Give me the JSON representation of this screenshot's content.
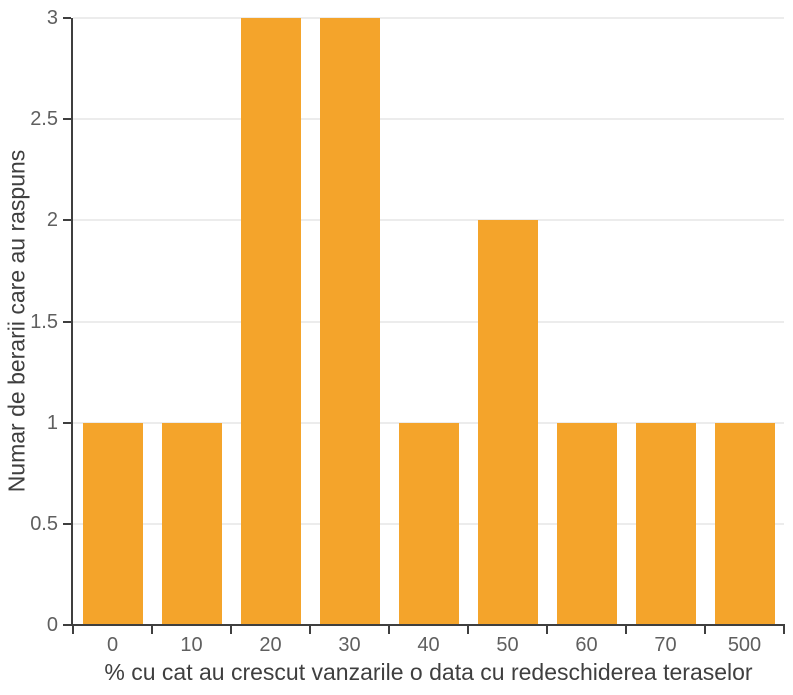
{
  "chart_data": {
    "type": "bar",
    "title": "",
    "categories": [
      "0",
      "10",
      "20",
      "30",
      "40",
      "50",
      "60",
      "70",
      "500"
    ],
    "values": [
      1,
      1,
      3,
      3,
      1,
      2,
      1,
      1,
      1
    ],
    "xlabel": "% cu cat au crescut vanzarile o data cu redeschiderea teraselor",
    "ylabel": "Numar de berarii care au raspuns",
    "ylim": [
      0,
      3
    ],
    "ytick_step": 0.5,
    "ytick_labels": [
      "0",
      "0.5",
      "1",
      "1.5",
      "2",
      "2.5",
      "3"
    ],
    "grid": true,
    "legend": "none",
    "colors": {
      "bar": "#f4a42b",
      "axis": "#3f3f3f",
      "grid": "#ececec",
      "tick_label": "#5f5f5f",
      "title": "#3f3f3f",
      "background": "#ffffff"
    }
  }
}
